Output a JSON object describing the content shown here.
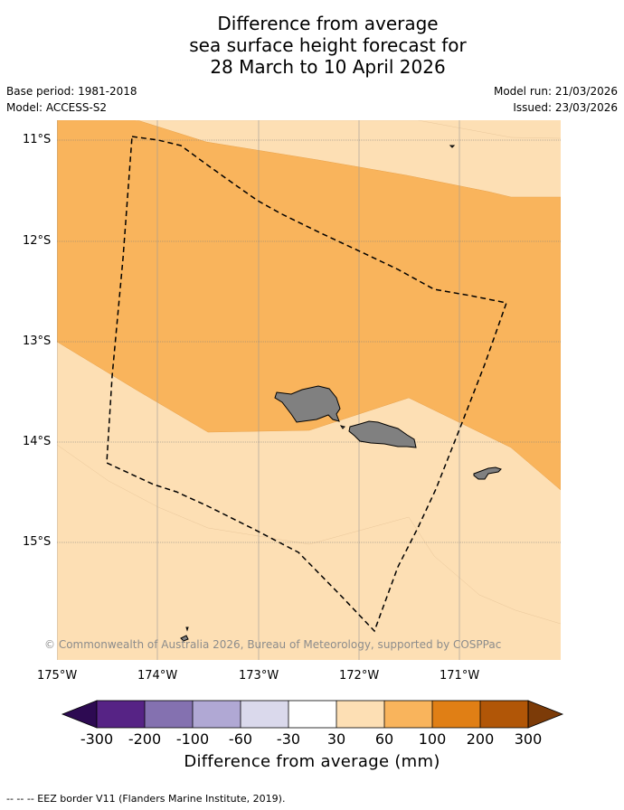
{
  "title": {
    "line1": "Difference from average",
    "line2": "sea surface height forecast for",
    "line3": "28 March to 10 April 2026"
  },
  "meta": {
    "base_period": "Base period: 1981-2018",
    "model": "Model: ACCESS-S2",
    "model_run": "Model run: 21/03/2026",
    "issued": "Issued: 23/03/2026"
  },
  "map": {
    "lon_range": [
      -175,
      -170
    ],
    "lat_range": [
      -16.2,
      -10.8
    ],
    "lat_labels": [
      "11°S",
      "12°S",
      "13°S",
      "14°S",
      "15°S"
    ],
    "lon_labels": [
      "175°W",
      "174°W",
      "173°W",
      "172°W",
      "171°W"
    ],
    "land_color": "#808080",
    "ocean_anomaly_classes": {
      "30-60": "#fddfb4",
      "60-100": "#f9b45c"
    },
    "copyright": "© Commonwealth of Australia 2026, Bureau of Meteorology, supported by COSPPac"
  },
  "colorbar": {
    "title": "Difference from average (mm)",
    "ticks": [
      "-300",
      "-200",
      "-100",
      "-60",
      "-30",
      "30",
      "60",
      "100",
      "200",
      "300"
    ],
    "colors": [
      "#2d0a52",
      "#562385",
      "#8471b0",
      "#b0a8d4",
      "#dad9ec",
      "#ffffff",
      "#fddfb4",
      "#f9b45c",
      "#e07f15",
      "#b15607",
      "#7c3b08"
    ]
  },
  "footer": {
    "legend": "--  --  -- EEZ border V11 (Flanders Marine Institute, 2019)."
  }
}
